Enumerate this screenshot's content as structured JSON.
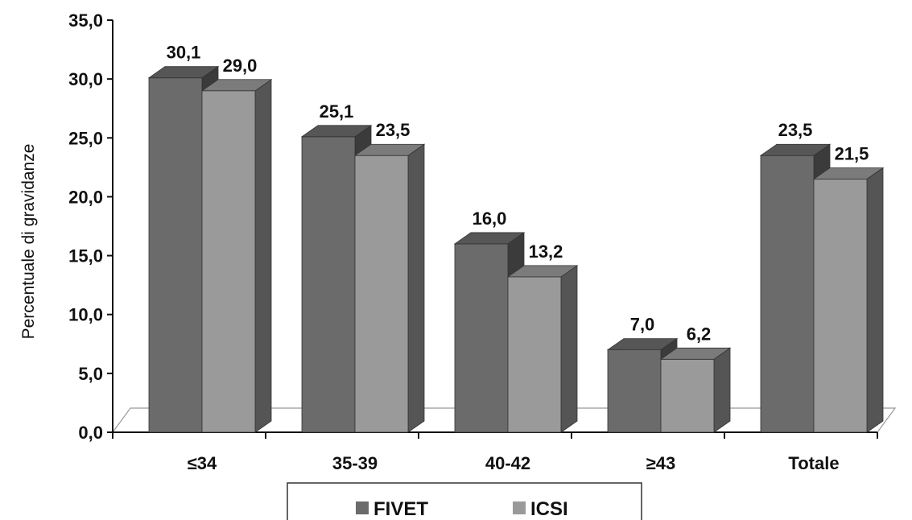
{
  "chart_data": {
    "type": "bar",
    "style": "3d-clustered",
    "categories": [
      "≤34",
      "35-39",
      "40-42",
      "≥43",
      "Totale"
    ],
    "series": [
      {
        "name": "FIVET",
        "values": [
          30.1,
          25.1,
          16.0,
          7.0,
          23.5
        ],
        "labels": [
          "30,1",
          "25,1",
          "16,0",
          "7,0",
          "23,5"
        ],
        "color": "#6b6b6b"
      },
      {
        "name": "ICSI",
        "values": [
          29.0,
          23.5,
          13.2,
          6.2,
          21.5
        ],
        "labels": [
          "29,0",
          "23,5",
          "13,2",
          "6,2",
          "21,5"
        ],
        "color": "#9a9a9a"
      }
    ],
    "ylabel": "Percentuale di gravidanze",
    "xlabel": "",
    "ylim": [
      0,
      35
    ],
    "yticks": [
      0,
      5,
      10,
      15,
      20,
      25,
      30,
      35
    ],
    "ytick_labels": [
      "0,0",
      "5,0",
      "10,0",
      "15,0",
      "20,0",
      "25,0",
      "30,0",
      "35,0"
    ],
    "grid": false,
    "legend": "bottom"
  }
}
